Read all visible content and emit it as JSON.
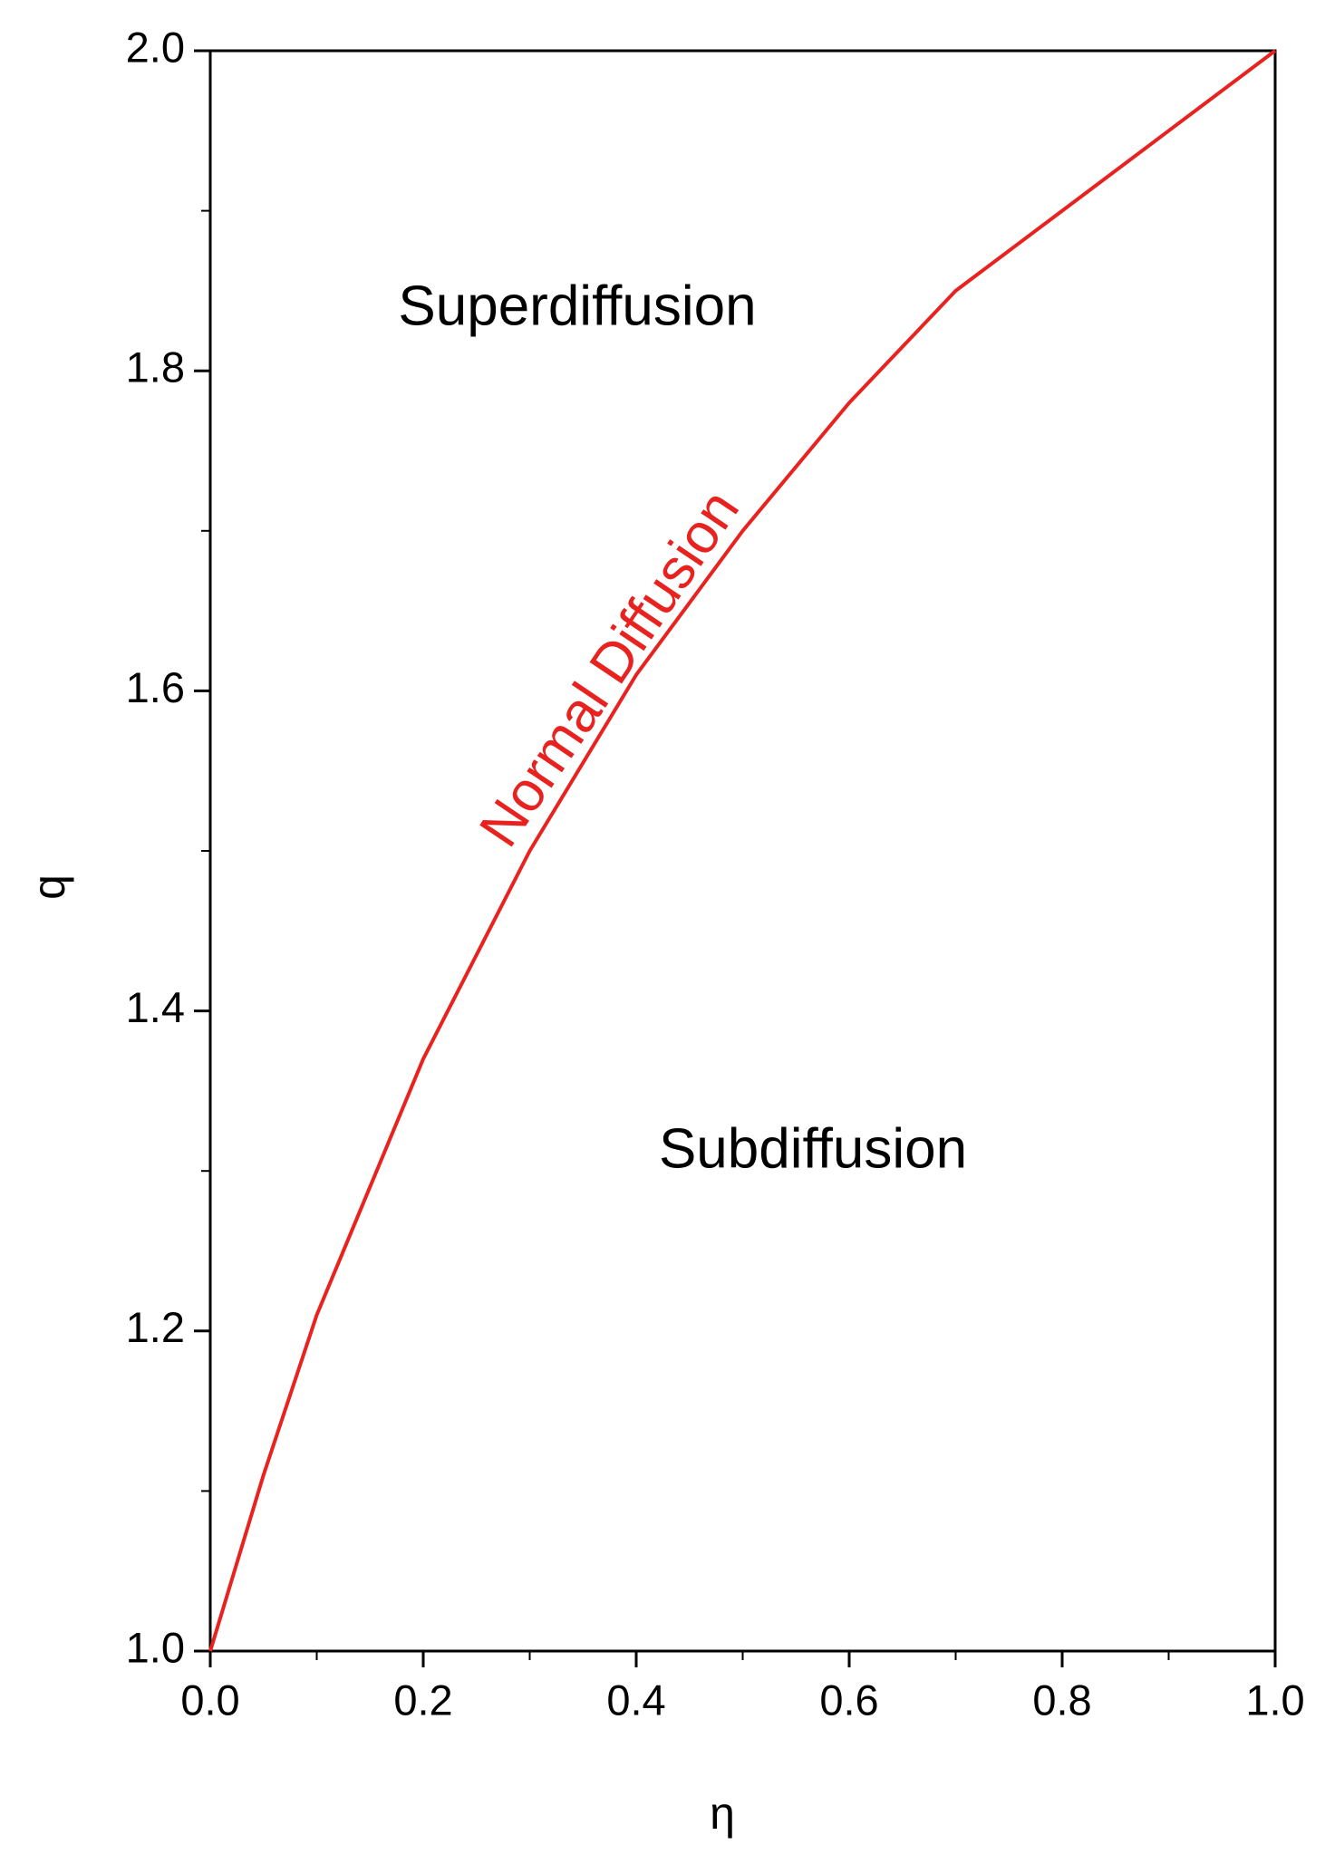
{
  "chart_data": {
    "type": "line",
    "x_label": "η",
    "y_label": "q",
    "x": [
      0,
      0.05,
      0.1,
      0.2,
      0.3,
      0.4,
      0.5,
      0.6,
      0.7,
      0.8,
      0.9,
      1.0
    ],
    "series": [
      {
        "name": "Normal Diffusion",
        "color": "#e8231f",
        "values": [
          1.0,
          1.11,
          1.21,
          1.37,
          1.5,
          1.61,
          1.7,
          1.78,
          1.85,
          1.9,
          1.95,
          2.0
        ]
      }
    ],
    "xlim": [
      0,
      1
    ],
    "ylim": [
      1,
      2
    ],
    "xticks": [
      {
        "value": 0,
        "label": "0.0"
      },
      0.2,
      0.4,
      0.6,
      0.8,
      {
        "value": 1,
        "label": "1.0"
      }
    ],
    "yticks": [
      {
        "value": 1,
        "label": "1.0"
      },
      1.2,
      1.4,
      1.6,
      1.8,
      {
        "value": 2,
        "label": "2.0"
      }
    ],
    "xminorticks": [
      0.1,
      0.3,
      0.5,
      0.7,
      0.9
    ],
    "yminorticks": [
      1.1,
      1.3,
      1.5,
      1.7,
      1.9
    ],
    "annotations": [
      "Superdiffusion",
      "Subdiffusion"
    ]
  }
}
